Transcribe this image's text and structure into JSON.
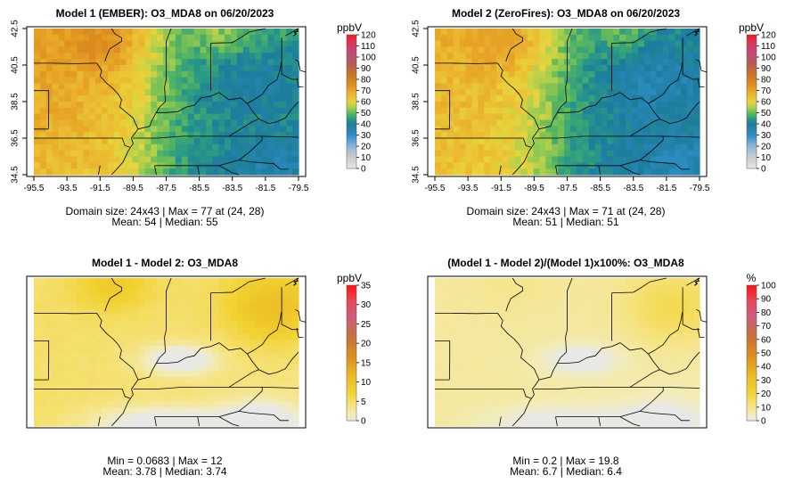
{
  "chart_data": [
    {
      "type": "heatmap",
      "title": "Model 1 (EMBER): O3_MDA8 on 06/20/2023",
      "unit": "ppbV",
      "scale": "ozone",
      "grid": "24x43",
      "xlim": [
        -95.5,
        -79.5
      ],
      "ylim": [
        34.5,
        42.5
      ],
      "xticks": [
        "-95.5",
        "-93.5",
        "-91.5",
        "-89.5",
        "-87.5",
        "-85.5",
        "-83.5",
        "-81.5",
        "-79.5"
      ],
      "yticks": [
        "34.5",
        "36.5",
        "38.5",
        "40.5",
        "42.5"
      ],
      "legend_ticks": [
        "0",
        "10",
        "20",
        "30",
        "40",
        "50",
        "60",
        "70",
        "80",
        "90",
        "100",
        "110",
        "120"
      ],
      "legend_max": 120,
      "field": {
        "west": 66,
        "east": 40,
        "north_bonus": 6,
        "max": 77
      },
      "footer": [
        "Domain size: 24x43 | Max = 77 at (24, 28)",
        "Mean: 54 |  Median: 55"
      ]
    },
    {
      "type": "heatmap",
      "title": "Model 2 (ZeroFires): O3_MDA8 on 06/20/2023",
      "unit": "ppbV",
      "scale": "ozone",
      "grid": "24x43",
      "xlim": [
        -95.5,
        -79.5
      ],
      "ylim": [
        34.5,
        42.5
      ],
      "xticks": [
        "-95.5",
        "-93.5",
        "-91.5",
        "-89.5",
        "-87.5",
        "-85.5",
        "-83.5",
        "-81.5",
        "-79.5"
      ],
      "yticks": [
        "34.5",
        "36.5",
        "38.5",
        "40.5",
        "42.5"
      ],
      "legend_ticks": [
        "0",
        "10",
        "20",
        "30",
        "40",
        "50",
        "60",
        "70",
        "80",
        "90",
        "100",
        "110",
        "120"
      ],
      "legend_max": 120,
      "field": {
        "west": 64,
        "east": 38,
        "north_bonus": 4,
        "max": 71
      },
      "footer": [
        "Domain size: 24x43 | Max = 71 at (24, 28)",
        "Mean: 51 |  Median: 51"
      ]
    },
    {
      "type": "heatmap",
      "title": "Model 1 - Model 2: O3_MDA8",
      "unit": "ppbV",
      "scale": "diff",
      "grid": "24x43",
      "xlim": [
        -95.5,
        -79.5
      ],
      "ylim": [
        34.5,
        42.5
      ],
      "xticks": [],
      "yticks": [],
      "legend_ticks": [
        "0",
        "5",
        "10",
        "15",
        "20",
        "25",
        "30",
        "35"
      ],
      "legend_max": 35,
      "field": {
        "base": 5,
        "ne_peak": 11,
        "nw_peak": 9,
        "min": 0.0683,
        "max": 12
      },
      "footer": [
        "Min = 0.0683 | Max = 12",
        "Mean: 3.78 |  Median: 3.74"
      ]
    },
    {
      "type": "heatmap",
      "title": "(Model 1 - Model 2)/(Model 1)x100%: O3_MDA8",
      "unit": "%",
      "scale": "diff",
      "grid": "24x43",
      "xlim": [
        -95.5,
        -79.5
      ],
      "ylim": [
        34.5,
        42.5
      ],
      "xticks": [],
      "yticks": [],
      "legend_ticks": [
        "0",
        "10",
        "20",
        "30",
        "40",
        "50",
        "60",
        "70",
        "80",
        "90",
        "100"
      ],
      "legend_max": 100,
      "field": {
        "base": 8,
        "ne_peak": 18,
        "nw_peak": 10,
        "min": 0.2,
        "max": 19.8
      },
      "footer": [
        "Min = 0.2 | Max = 19.8",
        "Mean: 6.7 |  Median: 6.4"
      ]
    }
  ]
}
